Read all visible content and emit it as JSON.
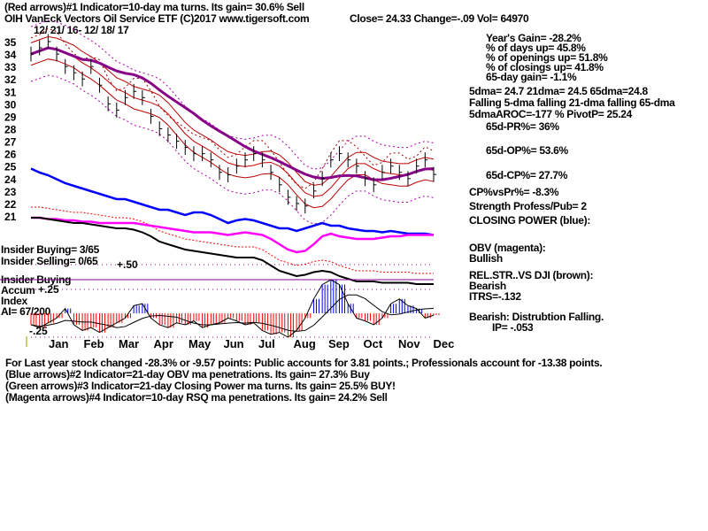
{
  "header": {
    "line1": "(Red arrows)#1 Indicator=10-day ma turns. Its gain= 30.6% Sell",
    "line2": "OIH   VanEck Vectors Oil Service ETF  (C)2017 www.tigersoft.com",
    "close": "Close=  24.33  Change=-.09 Vol=  64970",
    "dates": "12/ 21/ 16- 12/ 18/ 17"
  },
  "stats": [
    "Year's Gain= -28.2%",
    "% of days up= 45.8%",
    "% of openings up= 51.8%",
    "% of closings up= 41.8%",
    "65-day gain= -1.1%"
  ],
  "ma": [
    "5dma= 24.7 21dma= 24.5 65dma=24.8",
    "Falling 5-dma  falling 21-dma  falling 65-dma",
    "5dmaAROC=-177 %  PivotP= 25.24"
  ],
  "pr": "65d-PR%= 36%",
  "op": "65d-OP%= 53.6%",
  "cp": "65d-CP%= 27.7%",
  "cpvspr": "CP%vsPr%= -8.3%",
  "strength": "Strength Profess/Pub= 2",
  "closing_power": "CLOSING POWER (blue):",
  "obv": [
    "OBV (magenta):",
    "Bullish"
  ],
  "rel": [
    "REL.STR..VS DJI (brown):",
    "Bearish",
    "ITRS=-.132"
  ],
  "bearish": [
    "Bearish: Distrubtion Falling.",
    "IP= -.053"
  ],
  "insider": [
    "Insider Buying= 3/65",
    "Insider Selling= 0/65",
    "Insider Buying"
  ],
  "accum": [
    "Accum",
    "Index",
    "AI= 67/200"
  ],
  "footer": [
    "For Last year stock changed -28.3% or -9.57 points:  Public accounts for  3.81 points.;  Professionals account for -13.38 points.",
    "(Blue arrows)#2 Indicator=21-day OBV ma penetrations. Its gain= 27.3% Buy",
    "(Green arrows)#3 Indicator=21-day Closing Power ma turns. Its gain= 25.5% BUY!",
    "(Magenta arrows)#4 Indicator=10-day RSQ ma penetrations. Its gain= 24.2% Sell"
  ],
  "chart_data": {
    "type": "line",
    "title": "OIH VanEck Vectors Oil Service ETF",
    "y_ticks": [
      35,
      34,
      33,
      32,
      31,
      30,
      29,
      28,
      27,
      26,
      25,
      24,
      23,
      22,
      21
    ],
    "ylim": [
      21,
      35
    ],
    "months": [
      "Jan",
      "Feb",
      "Mar",
      "Apr",
      "May",
      "Jun",
      "Jul",
      "Aug",
      "Sep",
      "Oct",
      "Nov",
      "Dec"
    ],
    "close": [
      34,
      34.5,
      35,
      34,
      33,
      32.5,
      32,
      33,
      31.5,
      30,
      29.5,
      30.5,
      31,
      30.5,
      29,
      28,
      27.5,
      27,
      26.5,
      26,
      26,
      25.5,
      24.5,
      24.3,
      25,
      25.5,
      26,
      25.5,
      24.5,
      23.5,
      22.5,
      22,
      21.8,
      23,
      24,
      25.5,
      26,
      25.5,
      25,
      24,
      23.5,
      24.5,
      25,
      24.5,
      24,
      25,
      25.5,
      24.33
    ],
    "closing_power": [
      93,
      90,
      88,
      85,
      82,
      80,
      78,
      76,
      74,
      72,
      70,
      70,
      68,
      66,
      64,
      62,
      62,
      60,
      58,
      60,
      60,
      58,
      55,
      52,
      54,
      55,
      54,
      52,
      50,
      48,
      48,
      46,
      48,
      50,
      52,
      50,
      50,
      48,
      47,
      46,
      46,
      45,
      46,
      45,
      44,
      44,
      44,
      43
    ],
    "obv": [
      56,
      56,
      55,
      55,
      54,
      54,
      53,
      53,
      52,
      52,
      52,
      52,
      52,
      51,
      50,
      49,
      48,
      47,
      46,
      45,
      45,
      45,
      44,
      43,
      44,
      45,
      44,
      43,
      40,
      36,
      32,
      30,
      31,
      36,
      42,
      44,
      42,
      41,
      40,
      40,
      40,
      41,
      42,
      42,
      43,
      43,
      43,
      43
    ],
    "rel_strength": [
      56,
      56,
      55,
      54,
      53,
      52,
      52,
      51,
      50,
      49,
      48,
      48,
      47,
      45,
      42,
      38,
      36,
      34,
      32,
      31,
      30,
      29,
      28,
      27,
      26,
      26,
      26,
      24,
      20,
      16,
      14,
      12,
      13,
      15,
      16,
      15,
      12,
      10,
      8,
      8,
      8,
      7,
      7,
      7,
      7,
      6,
      6,
      6
    ],
    "accum_index": {
      "ticks": [
        "+.50",
        "+.25",
        "-.25"
      ],
      "values": [
        -0.12,
        -0.15,
        -0.1,
        -0.05,
        0.05,
        -0.12,
        -0.18,
        -0.15,
        -0.2,
        -0.15,
        -0.1,
        -0.05,
        0.08,
        0.1,
        -0.05,
        -0.12,
        -0.15,
        -0.1,
        -0.12,
        -0.08,
        -0.15,
        -0.12,
        -0.1,
        -0.05,
        -0.08,
        -0.12,
        -0.1,
        -0.18,
        -0.22,
        -0.2,
        -0.25,
        -0.18,
        -0.05,
        0.15,
        0.3,
        0.35,
        0.3,
        0.1,
        -0.05,
        -0.08,
        -0.12,
        -0.05,
        0.1,
        0.15,
        0.08,
        0.05,
        -0.05,
        -0.02
      ]
    }
  }
}
